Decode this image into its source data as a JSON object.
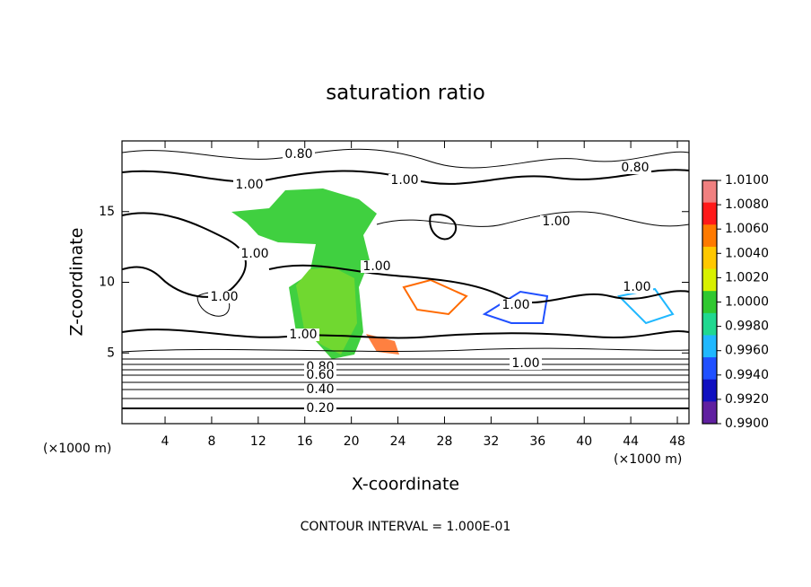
{
  "chart_data": {
    "type": "contour",
    "title": "saturation ratio",
    "x_label": "X-coordinate",
    "y_label": "Z-coordinate",
    "x_unit": "(×1000 m)",
    "x_unit_right": "(×1000 m)",
    "footer": "CONTOUR INTERVAL = 1.000E-01",
    "xlim": [
      0.3,
      49
    ],
    "xticks": [
      4,
      8,
      12,
      16,
      20,
      24,
      28,
      32,
      36,
      40,
      44,
      48
    ],
    "ylim": [
      0,
      20
    ],
    "yticks": [
      5,
      10,
      15
    ],
    "contour_labels": [
      "0.80",
      "0.80",
      "1.00",
      "1.00",
      "1.00",
      "1.00",
      "1.00",
      "1.00",
      "1.00",
      "1.00",
      "1.00",
      "1.00",
      "0.80",
      "0.60",
      "0.40",
      "0.20"
    ],
    "colorbar": {
      "lim": [
        0.99,
        1.01
      ],
      "ticks": [
        {
          "value": 1.01,
          "label": "1.0100"
        },
        {
          "value": 1.008,
          "label": "1.0080"
        },
        {
          "value": 1.006,
          "label": "1.0060"
        },
        {
          "value": 1.004,
          "label": "1.0040"
        },
        {
          "value": 1.002,
          "label": "1.0020"
        },
        {
          "value": 1.0,
          "label": "1.0000"
        },
        {
          "value": 0.998,
          "label": "0.9980"
        },
        {
          "value": 0.996,
          "label": "0.9960"
        },
        {
          "value": 0.994,
          "label": "0.9940"
        },
        {
          "value": 0.992,
          "label": "0.9920"
        },
        {
          "value": 0.99,
          "label": "0.9900"
        }
      ],
      "colors": [
        "#f08080",
        "#ff1a1a",
        "#ff7a00",
        "#ffc800",
        "#d8f000",
        "#30c830",
        "#20d890",
        "#20b8ff",
        "#2050ff",
        "#1010c0",
        "#6020a0"
      ]
    }
  }
}
